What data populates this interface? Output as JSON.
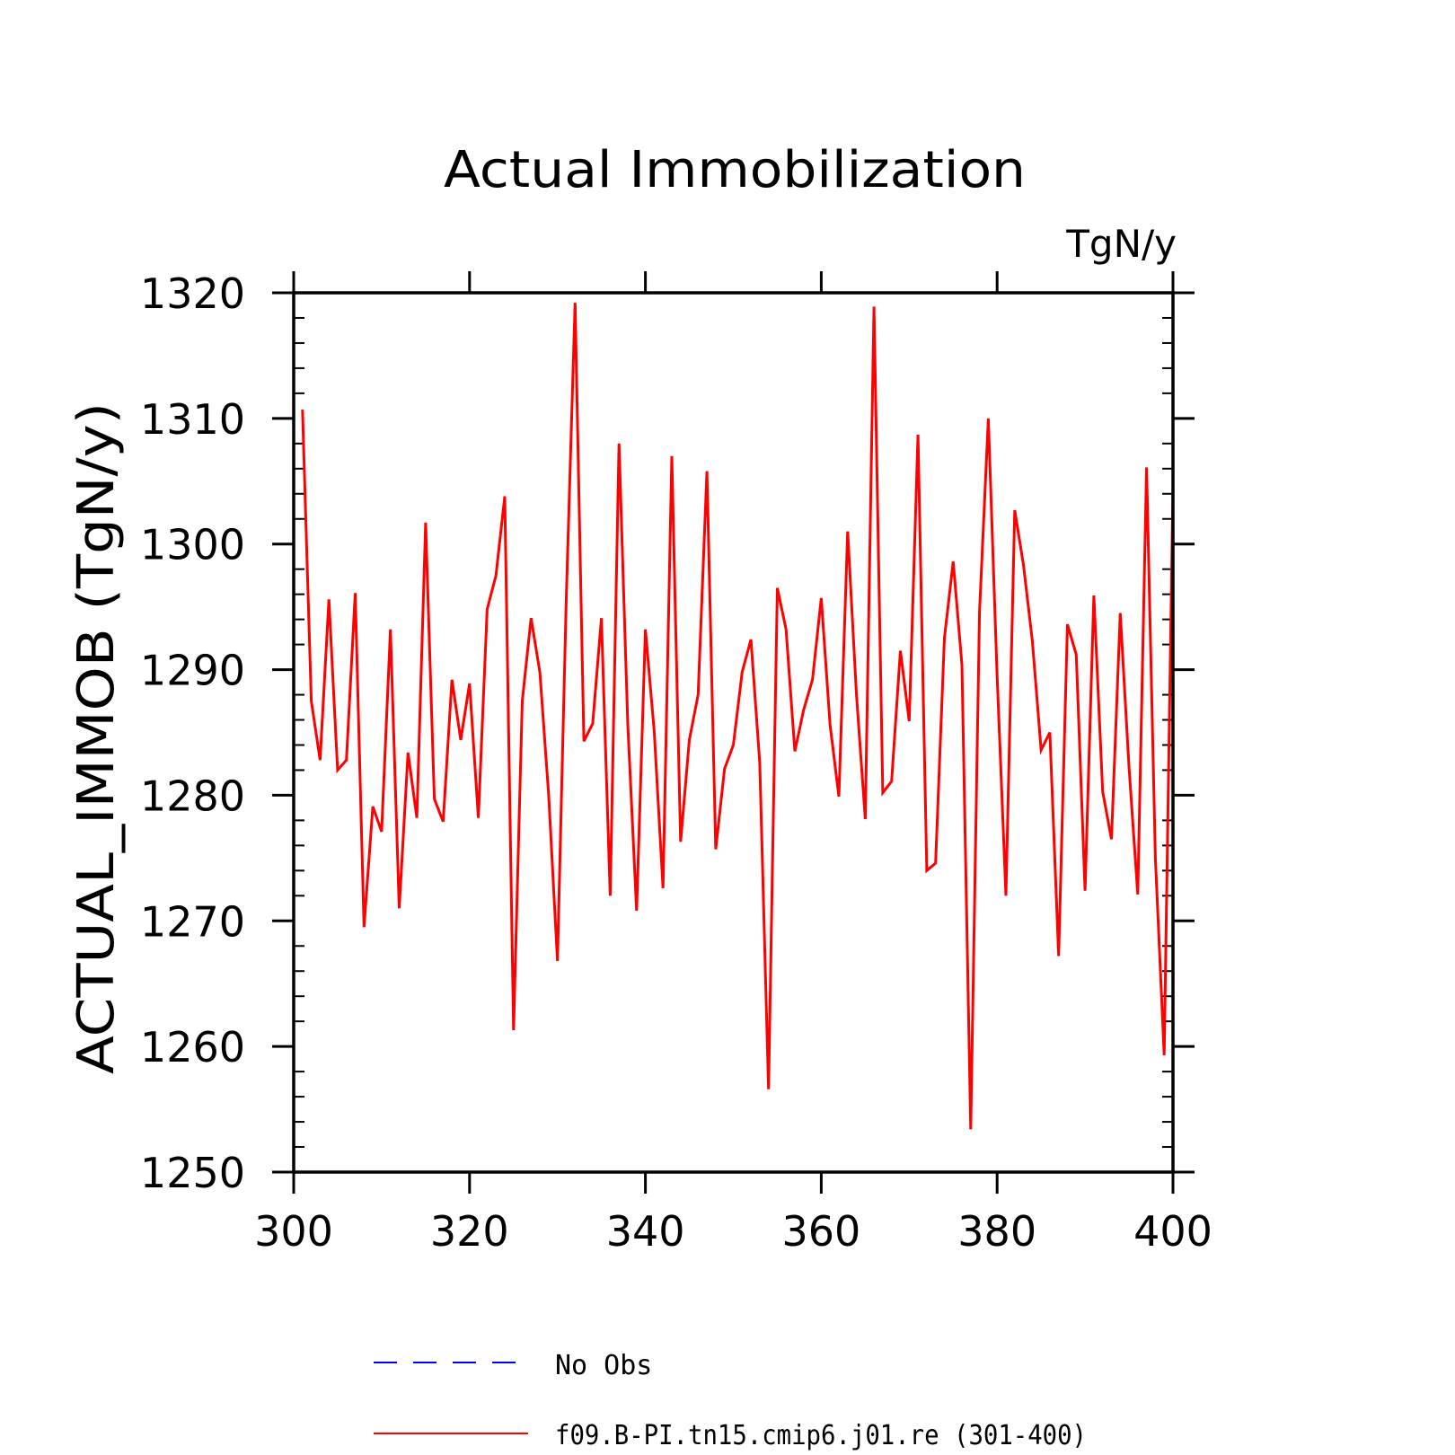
{
  "chart_data": {
    "type": "line",
    "title": "Actual Immobilization",
    "units": "TgN/y",
    "ylabel": "ACTUAL_IMMOB   (TgN/y)",
    "xlabel": "",
    "xlim": [
      300,
      400
    ],
    "ylim": [
      1250,
      1320
    ],
    "x_ticks": [
      300,
      320,
      340,
      360,
      380,
      400
    ],
    "y_ticks": [
      1250,
      1260,
      1270,
      1280,
      1290,
      1300,
      1310,
      1320
    ],
    "legend": [
      {
        "name": "No Obs",
        "color": "#0000ff",
        "style": "dashed"
      },
      {
        "name": "f09.B-PI.tn15.cmip6.j01.re (301-400)",
        "color": "#ff0000",
        "style": "solid"
      }
    ],
    "series": [
      {
        "name": "f09.B-PI.tn15.cmip6.j01.re (301-400)",
        "color": "#ff0000",
        "x": [
          301,
          302,
          303,
          304,
          305,
          306,
          307,
          308,
          309,
          310,
          311,
          312,
          313,
          314,
          315,
          316,
          317,
          318,
          319,
          320,
          321,
          322,
          323,
          324,
          325,
          326,
          327,
          328,
          329,
          330,
          331,
          332,
          333,
          334,
          335,
          336,
          337,
          338,
          339,
          340,
          341,
          342,
          343,
          344,
          345,
          346,
          347,
          348,
          349,
          350,
          351,
          352,
          353,
          354,
          355,
          356,
          357,
          358,
          359,
          360,
          361,
          362,
          363,
          364,
          365,
          366,
          367,
          368,
          369,
          370,
          371,
          372,
          373,
          374,
          375,
          376,
          377,
          378,
          379,
          380,
          381,
          382,
          383,
          384,
          385,
          386,
          387,
          388,
          389,
          390,
          391,
          392,
          393,
          394,
          395,
          396,
          397,
          398,
          399,
          400
        ],
        "y": [
          1310.7,
          1287.5,
          1282.8,
          1295.6,
          1282.0,
          1282.8,
          1296.1,
          1269.5,
          1279.1,
          1277.1,
          1293.2,
          1271.0,
          1283.4,
          1278.2,
          1301.7,
          1279.7,
          1277.9,
          1289.2,
          1284.4,
          1288.9,
          1278.2,
          1294.8,
          1297.5,
          1303.8,
          1261.3,
          1287.5,
          1294.1,
          1289.8,
          1280.0,
          1266.8,
          1295.7,
          1319.2,
          1284.3,
          1285.7,
          1294.1,
          1272.0,
          1308.0,
          1285.6,
          1270.8,
          1293.2,
          1285.1,
          1272.6,
          1307.0,
          1276.3,
          1284.4,
          1288.0,
          1305.8,
          1275.7,
          1282.1,
          1284.0,
          1289.8,
          1292.4,
          1282.6,
          1256.6,
          1296.5,
          1293.2,
          1283.5,
          1286.8,
          1289.2,
          1295.7,
          1285.6,
          1279.9,
          1301.0,
          1288.0,
          1278.1,
          1318.9,
          1280.2,
          1281.1,
          1291.5,
          1285.9,
          1308.7,
          1274.0,
          1274.6,
          1292.5,
          1298.6,
          1290.4,
          1253.4,
          1294.6,
          1310.0,
          1289.5,
          1272.0,
          1302.7,
          1298.3,
          1292.3,
          1283.6,
          1285.0,
          1267.2,
          1293.6,
          1291.2,
          1272.4,
          1295.9,
          1280.3,
          1276.5,
          1294.5,
          1282.3,
          1272.1,
          1306.1,
          1275.0,
          1259.3,
          1304.5
        ]
      }
    ]
  }
}
